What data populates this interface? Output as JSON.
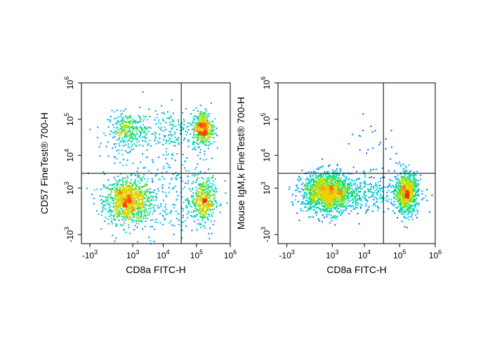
{
  "chart_data": [
    {
      "type": "scatter",
      "title": "",
      "xlabel": "CD8a FITC-H",
      "ylabel": "CD57 FineTest® 700-H",
      "x_ticks": [
        {
          "label": "-10",
          "exp": "3"
        },
        {
          "label": "10",
          "exp": "3"
        },
        {
          "label": "10",
          "exp": "4"
        },
        {
          "label": "10",
          "exp": "5"
        },
        {
          "label": "10",
          "exp": "6"
        }
      ],
      "y_ticks": [
        {
          "label": "-10",
          "exp": "3"
        },
        {
          "label": "10",
          "exp": "3"
        },
        {
          "label": "10",
          "exp": "4"
        },
        {
          "label": "10",
          "exp": "5"
        },
        {
          "label": "10",
          "exp": "6"
        }
      ],
      "x_scale": "biexponential",
      "y_scale": "biexponential",
      "gate_x": 35000,
      "gate_y": 3000,
      "populations": [
        {
          "x": 600,
          "y": 300,
          "share": 0.36,
          "spread_x": 0.35,
          "spread_y": 0.3
        },
        {
          "x": 600,
          "y": 50000,
          "share": 0.12,
          "spread_x": 0.3,
          "spread_y": 0.25
        },
        {
          "x": 150000,
          "y": 300,
          "share": 0.16,
          "spread_x": 0.18,
          "spread_y": 0.3
        },
        {
          "x": 150000,
          "y": 60000,
          "share": 0.16,
          "spread_x": 0.15,
          "spread_y": 0.25
        },
        {
          "x": 15000,
          "y": 50000,
          "share": 0.06,
          "spread_x": 0.4,
          "spread_y": 0.3
        },
        {
          "x": 8000,
          "y": 800,
          "share": 0.14,
          "spread_x": 0.9,
          "spread_y": 0.7
        }
      ]
    },
    {
      "type": "scatter",
      "title": "",
      "xlabel": "CD8a FITC-H",
      "ylabel": "Mouse IgM,k FineTest® 700-H",
      "x_ticks": [
        {
          "label": "-10",
          "exp": "3"
        },
        {
          "label": "10",
          "exp": "3"
        },
        {
          "label": "10",
          "exp": "4"
        },
        {
          "label": "10",
          "exp": "5"
        },
        {
          "label": "10",
          "exp": "6"
        }
      ],
      "y_ticks": [
        {
          "label": "-10",
          "exp": "3"
        },
        {
          "label": "10",
          "exp": "3"
        },
        {
          "label": "10",
          "exp": "4"
        },
        {
          "label": "10",
          "exp": "5"
        },
        {
          "label": "10",
          "exp": "6"
        }
      ],
      "x_scale": "biexponential",
      "y_scale": "biexponential",
      "gate_x": 35000,
      "gate_y": 3000,
      "populations": [
        {
          "x": 600,
          "y": 700,
          "share": 0.52,
          "spread_x": 0.35,
          "spread_y": 0.28
        },
        {
          "x": 150000,
          "y": 700,
          "share": 0.3,
          "spread_x": 0.16,
          "spread_y": 0.28
        },
        {
          "x": 8000,
          "y": 700,
          "share": 0.17,
          "spread_x": 0.8,
          "spread_y": 0.25
        },
        {
          "x": 25000,
          "y": 15000,
          "share": 0.01,
          "spread_x": 0.4,
          "spread_y": 0.4
        }
      ]
    }
  ]
}
